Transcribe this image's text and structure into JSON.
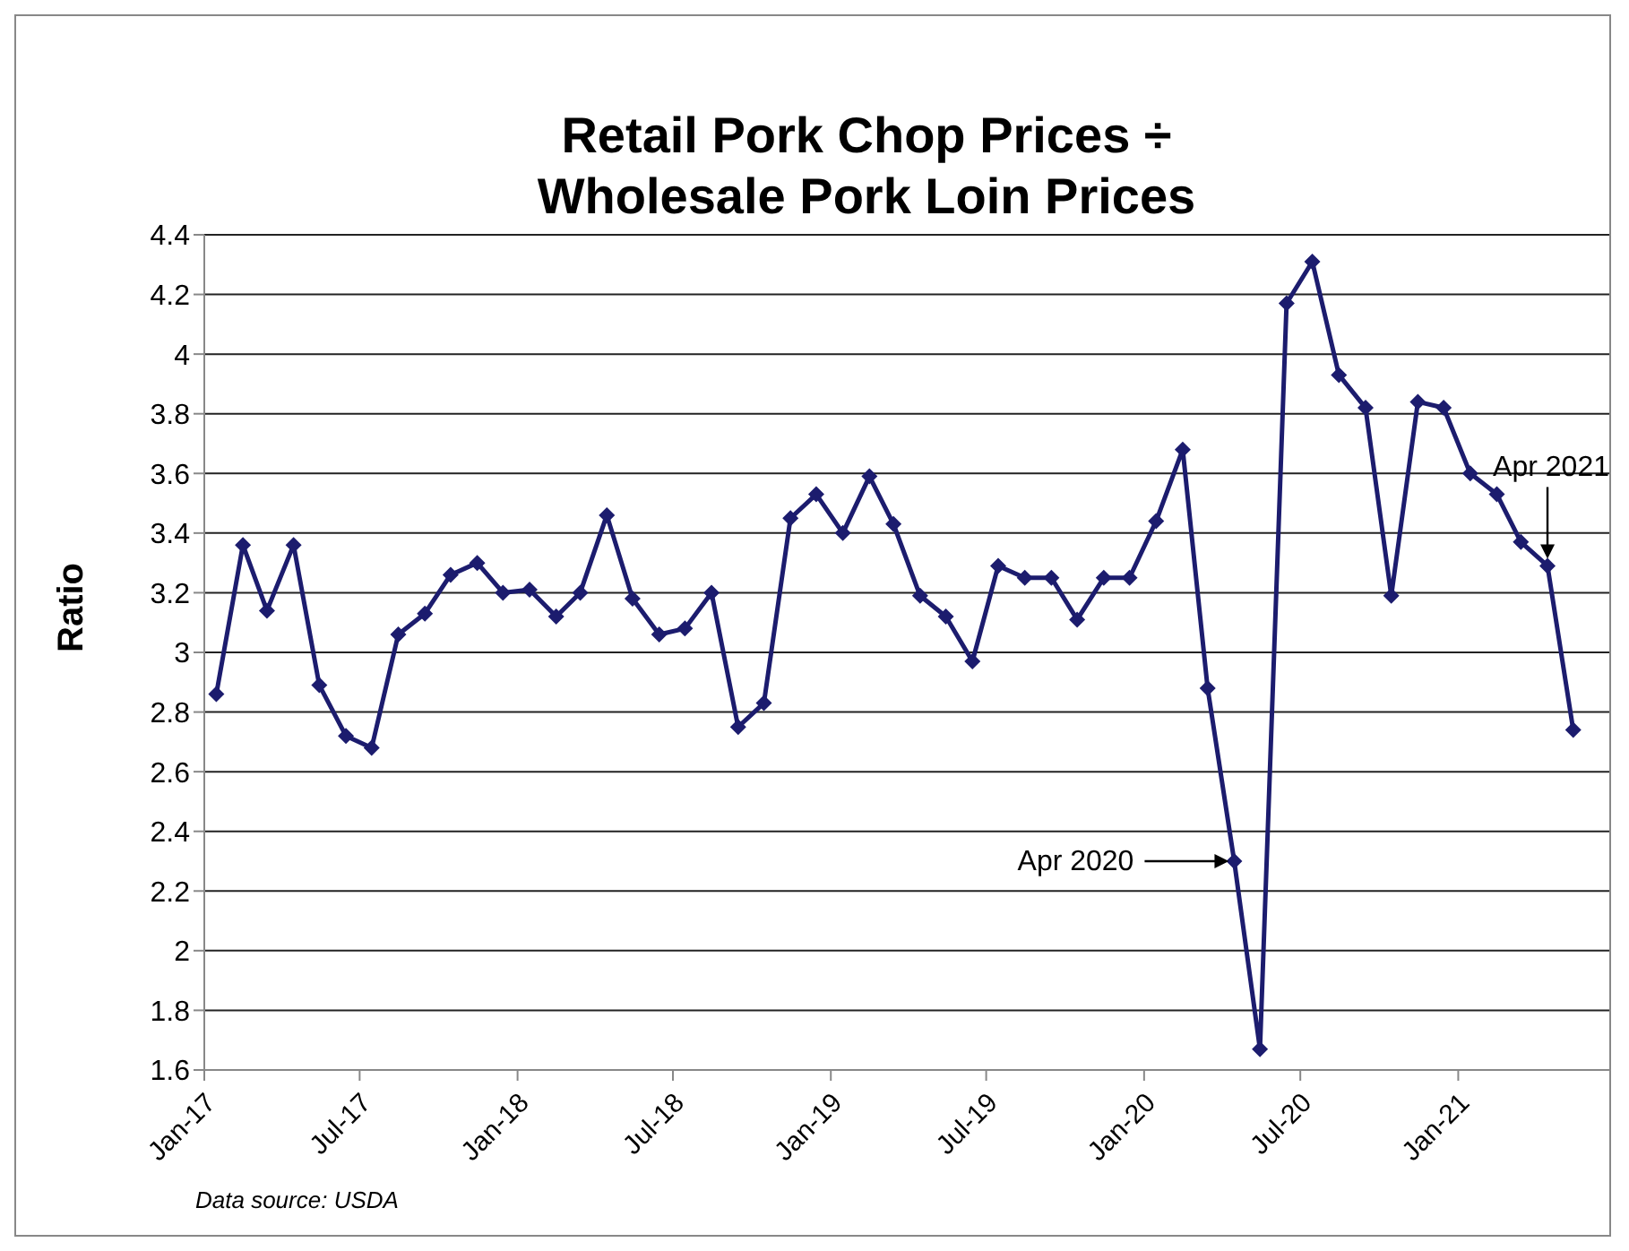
{
  "chart_data": {
    "type": "line",
    "title": "Retail Pork Chop Prices ÷\nWholesale Pork Loin Prices",
    "ylabel": "Ratio",
    "x": [
      "2017-01-15",
      "2017-02-15",
      "2017-03-15",
      "2017-04-15",
      "2017-05-15",
      "2017-06-15",
      "2017-07-15",
      "2017-08-15",
      "2017-09-15",
      "2017-10-15",
      "2017-11-15",
      "2017-12-15",
      "2018-01-15",
      "2018-02-15",
      "2018-03-15",
      "2018-04-15",
      "2018-05-15",
      "2018-06-15",
      "2018-07-15",
      "2018-08-15",
      "2018-09-15",
      "2018-10-15",
      "2018-11-15",
      "2018-12-15",
      "2019-01-15",
      "2019-02-15",
      "2019-03-15",
      "2019-04-15",
      "2019-05-15",
      "2019-06-15",
      "2019-07-15",
      "2019-08-15",
      "2019-09-15",
      "2019-10-15",
      "2019-11-15",
      "2019-12-15",
      "2020-01-15",
      "2020-02-15",
      "2020-03-15",
      "2020-04-15",
      "2020-05-15",
      "2020-06-15",
      "2020-07-15",
      "2020-08-15",
      "2020-09-15",
      "2020-10-15",
      "2020-11-15",
      "2020-12-15",
      "2021-01-15",
      "2021-02-15",
      "2021-03-15",
      "2021-04-15",
      "2021-05-15"
    ],
    "series": [
      {
        "color": "#1c1c6e",
        "values": [
          2.86,
          3.36,
          3.14,
          3.36,
          2.89,
          2.72,
          2.68,
          3.06,
          3.13,
          3.26,
          3.3,
          3.2,
          3.21,
          3.12,
          3.2,
          3.46,
          3.18,
          3.06,
          3.08,
          3.2,
          2.75,
          2.83,
          3.45,
          3.53,
          3.4,
          3.59,
          3.43,
          3.19,
          3.12,
          2.97,
          3.29,
          3.25,
          3.25,
          3.11,
          3.25,
          3.25,
          3.44,
          3.68,
          2.88,
          2.3,
          1.67,
          4.17,
          4.31,
          3.93,
          3.82,
          3.19,
          3.84,
          3.82,
          3.6,
          3.53,
          3.37,
          3.29,
          2.74
        ]
      }
    ],
    "xlim": [
      "2017-01-01",
      "2021-06-26"
    ],
    "xticks": [
      {
        "value": "2017-01-01",
        "label": "Jan-17"
      },
      {
        "value": "2017-07-01",
        "label": "Jul-17"
      },
      {
        "value": "2018-01-01",
        "label": "Jan-18"
      },
      {
        "value": "2018-07-01",
        "label": "Jul-18"
      },
      {
        "value": "2019-01-01",
        "label": "Jan-19"
      },
      {
        "value": "2019-07-01",
        "label": "Jul-19"
      },
      {
        "value": "2020-01-01",
        "label": "Jan-20"
      },
      {
        "value": "2020-07-01",
        "label": "Jul-20"
      },
      {
        "value": "2021-01-01",
        "label": "Jan-21"
      }
    ],
    "ylim": [
      1.6,
      4.4
    ],
    "yticks": [
      1.6,
      1.8,
      2,
      2.2,
      2.4,
      2.6,
      2.8,
      3,
      3.2,
      3.4,
      3.6,
      3.8,
      4,
      4.2,
      4.4
    ],
    "grid": "y",
    "marker": "diamond",
    "line_style": "solid",
    "annotations": [
      {
        "text": "Apr 2020",
        "x": "2020-04-15",
        "y": 2.3
      },
      {
        "text": "Apr 2021",
        "x": "2021-04-15",
        "y": 3.29
      },
      "Data source: USDA"
    ]
  }
}
